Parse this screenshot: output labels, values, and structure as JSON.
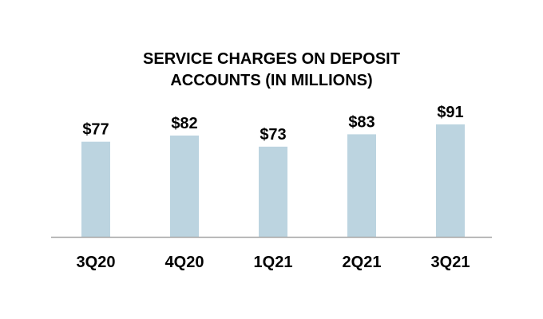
{
  "chart_data": {
    "type": "bar",
    "title_lines": [
      "SERVICE CHARGES ON DEPOSIT",
      "ACCOUNTS (IN MILLIONS)"
    ],
    "categories": [
      "3Q20",
      "4Q20",
      "1Q21",
      "2Q21",
      "3Q21"
    ],
    "values": [
      77,
      82,
      73,
      83,
      91
    ],
    "data_labels": [
      "$77",
      "$82",
      "$73",
      "$83",
      "$91"
    ],
    "xlabel": "",
    "ylabel": "",
    "ylim": [
      0,
      91
    ],
    "grid": false,
    "legend": "none",
    "bar_color": "#bcd4e0",
    "axis_color": "#a6a6a6"
  }
}
